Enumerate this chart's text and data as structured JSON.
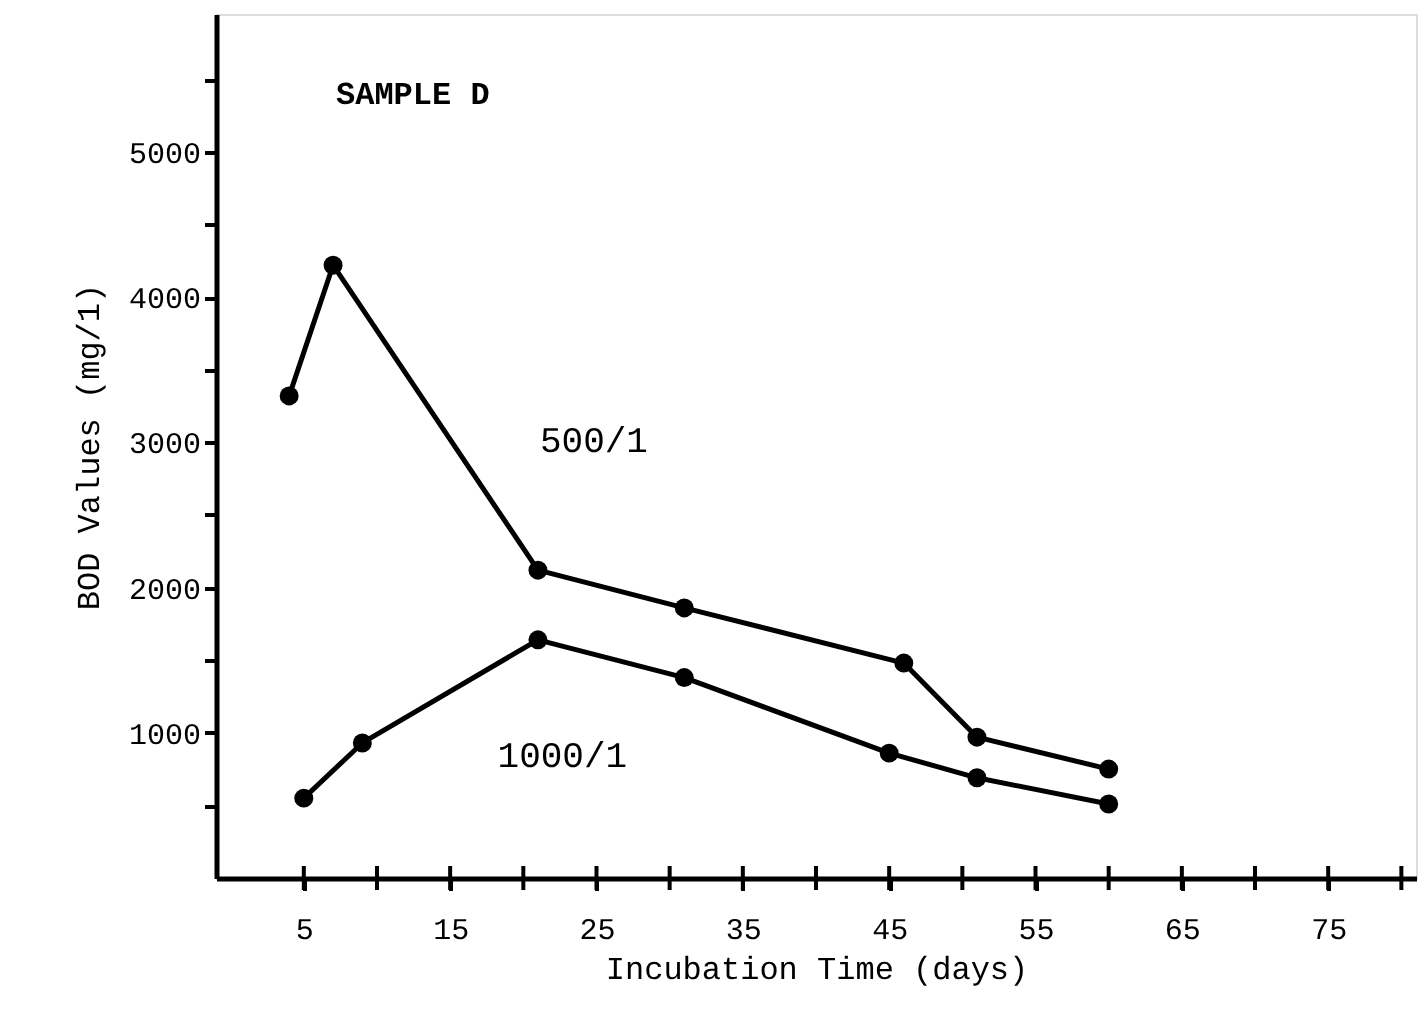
{
  "chart_data": {
    "type": "line",
    "title": "SAMPLE D",
    "xlabel": "Incubation Time (days)",
    "ylabel": "BOD Values (mg/1)",
    "xlim": [
      -1,
      81
    ],
    "ylim": [
      0,
      5950
    ],
    "xticks": [
      5,
      {
        "value": 10,
        "label": null
      },
      15,
      {
        "value": 20,
        "label": null
      },
      25,
      {
        "value": 30,
        "label": null
      },
      35,
      {
        "value": 40,
        "label": null
      },
      45,
      {
        "value": 50,
        "label": null
      },
      55,
      {
        "value": 60,
        "label": null
      },
      65,
      {
        "value": 70,
        "label": null
      },
      75,
      {
        "value": 80,
        "label": null
      }
    ],
    "yticks": [
      {
        "value": 500,
        "label": null
      },
      1000,
      {
        "value": 1500,
        "label": null
      },
      2000,
      {
        "value": 2500,
        "label": null
      },
      3000,
      {
        "value": 3500,
        "label": null
      },
      4000,
      {
        "value": 4500,
        "label": null
      },
      5000,
      {
        "value": 5500,
        "label": null
      }
    ],
    "grid": false,
    "marker": "circle",
    "line_style": "solid",
    "series": [
      {
        "name": "500/1",
        "color": "#000000",
        "x": [
          4,
          7,
          21,
          31,
          46,
          51,
          60
        ],
        "values": [
          3320,
          4220,
          2120,
          1860,
          1480,
          970,
          750
        ]
      },
      {
        "name": "1000/1",
        "color": "#000000",
        "x": [
          5,
          9,
          21,
          31,
          45,
          51,
          60
        ],
        "values": [
          550,
          930,
          1640,
          1380,
          860,
          690,
          510
        ]
      }
    ]
  }
}
